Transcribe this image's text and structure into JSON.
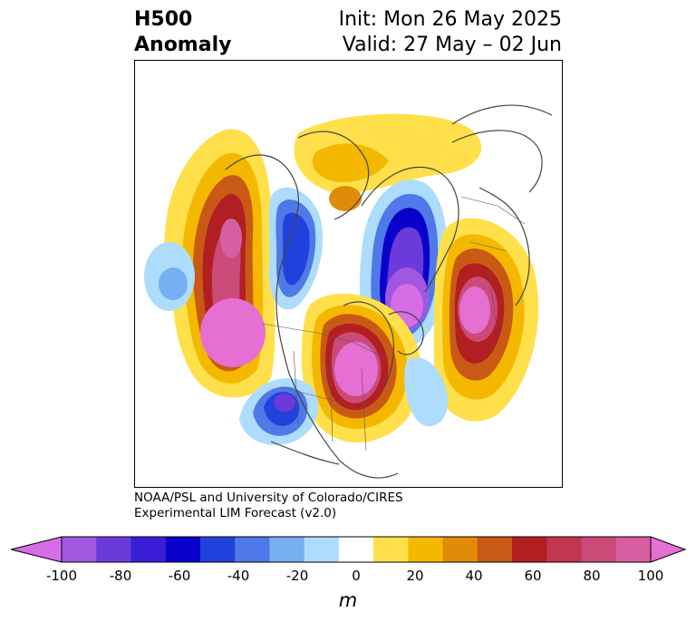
{
  "title": {
    "left_line1": "H500",
    "left_line2": "Anomaly",
    "right_line1": "Init: Mon 26 May 2025",
    "right_line2": "Valid: 27 May – 02 Jun"
  },
  "credit": {
    "line1": "NOAA/PSL and University of Colorado/CIRES",
    "line2": "Experimental LIM Forecast (v2.0)"
  },
  "colorbar": {
    "unit": "m",
    "tick_labels": [
      "-100",
      "-80",
      "-60",
      "-40",
      "-20",
      "0",
      "20",
      "40",
      "60",
      "80",
      "100"
    ],
    "colors": [
      "#d66ce6",
      "#a157e0",
      "#6b3adb",
      "#3b1fd8",
      "#0a00cc",
      "#2241dc",
      "#4f79e8",
      "#76b0f2",
      "#aedcfc",
      "#ffffff",
      "#ffe04a",
      "#f5b800",
      "#e08c08",
      "#c95a16",
      "#b21f22",
      "#c13650",
      "#cc4a78",
      "#d55fa0",
      "#e66fd2"
    ]
  },
  "map": {
    "projection": "polar-stereographic",
    "features": [
      {
        "name": "positive-anomaly-west-coast",
        "sign": "positive"
      },
      {
        "name": "negative-anomaly-western-canada",
        "sign": "negative"
      },
      {
        "name": "positive-anomaly-central-us",
        "sign": "positive"
      },
      {
        "name": "negative-anomaly-greenland",
        "sign": "negative"
      },
      {
        "name": "positive-anomaly-europe",
        "sign": "positive"
      },
      {
        "name": "negative-anomaly-southwest-us",
        "sign": "negative"
      },
      {
        "name": "negative-anomaly-pacific",
        "sign": "negative"
      }
    ]
  }
}
